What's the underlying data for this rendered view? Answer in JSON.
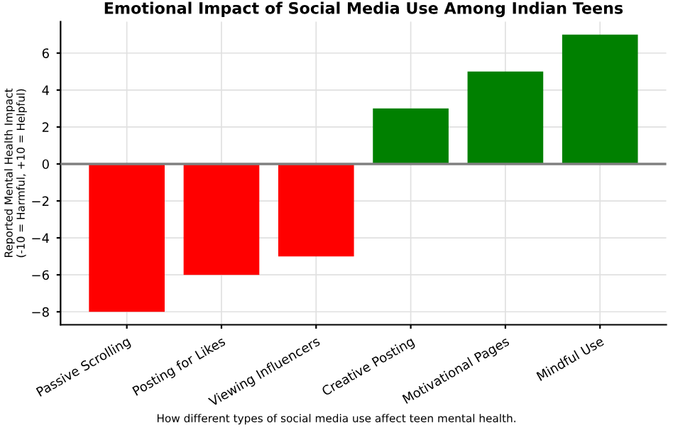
{
  "chart_data": {
    "type": "bar",
    "title": "Emotional Impact of Social Media Use Among Indian Teens",
    "ylabel": "Reported Mental Health Impact\n(-10 = Harmful, +10 = Helpful)",
    "categories": [
      "Passive Scrolling",
      "Posting for Likes",
      "Viewing Influencers",
      "Creative Posting",
      "Motivational Pages",
      "Mindful Use"
    ],
    "values": [
      -8,
      -6,
      -5,
      3,
      5,
      7
    ],
    "colors": [
      "#ff0000",
      "#ff0000",
      "#ff0000",
      "#008000",
      "#008000",
      "#008000"
    ],
    "ylim": [
      -8.7,
      7.7
    ],
    "yticks": [
      {
        "value": -8,
        "label": "−8"
      },
      {
        "value": -6,
        "label": "−6"
      },
      {
        "value": -4,
        "label": "−4"
      },
      {
        "value": -2,
        "label": "−2"
      },
      0,
      2,
      4,
      6
    ],
    "grid": true,
    "ref_lines": [
      {
        "axis": "y",
        "value": 0,
        "color": "#808080"
      }
    ],
    "annotations": [
      "How different types of social media use affect teen mental health."
    ]
  }
}
